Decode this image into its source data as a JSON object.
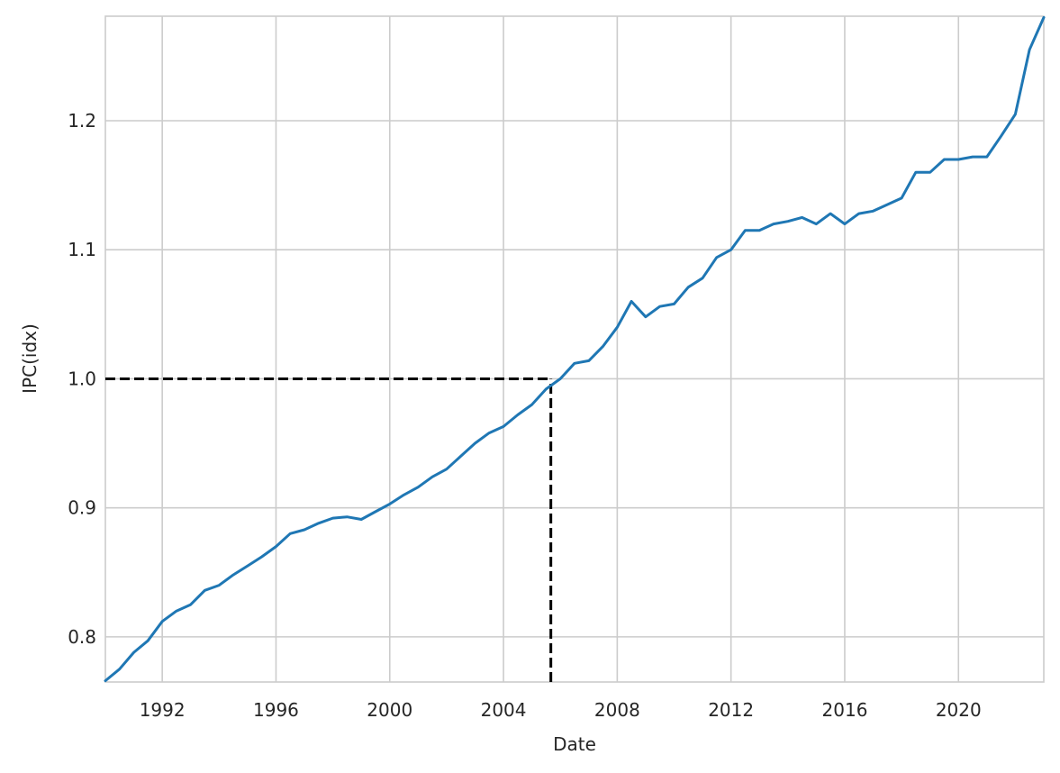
{
  "chart_data": {
    "type": "line",
    "title": "",
    "xlabel": "Date",
    "ylabel": "IPC(idx)",
    "x_axis_type": "date",
    "xlim": [
      "1990-01-01",
      "2023-01-01"
    ],
    "ylim": [
      0.765,
      1.281
    ],
    "x_ticks": [
      "1992",
      "1996",
      "2000",
      "2004",
      "2008",
      "2012",
      "2016",
      "2020"
    ],
    "y_ticks": [
      "0.8",
      "0.9",
      "1.0",
      "1.1",
      "1.2"
    ],
    "grid": true,
    "legend": "none",
    "colors": {
      "series": "#1f77b4",
      "reference": "#000000"
    },
    "series": [
      {
        "x": [
          "1990-01",
          "1990-07",
          "1991-01",
          "1991-07",
          "1992-01",
          "1992-07",
          "1993-01",
          "1993-07",
          "1994-01",
          "1994-07",
          "1995-01",
          "1995-07",
          "1996-01",
          "1996-07",
          "1997-01",
          "1997-07",
          "1998-01",
          "1998-07",
          "1999-01",
          "1999-07",
          "2000-01",
          "2000-07",
          "2001-01",
          "2001-07",
          "2002-01",
          "2002-07",
          "2003-01",
          "2003-07",
          "2004-01",
          "2004-07",
          "2005-01",
          "2005-07",
          "2006-01",
          "2006-07",
          "2007-01",
          "2007-07",
          "2008-01",
          "2008-07",
          "2009-01",
          "2009-07",
          "2010-01",
          "2010-07",
          "2011-01",
          "2011-07",
          "2012-01",
          "2012-07",
          "2013-01",
          "2013-07",
          "2014-01",
          "2014-07",
          "2015-01",
          "2015-07",
          "2016-01",
          "2016-07",
          "2017-01",
          "2017-07",
          "2018-01",
          "2018-07",
          "2019-01",
          "2019-07",
          "2020-01",
          "2020-07",
          "2021-01",
          "2021-07",
          "2022-01",
          "2022-07",
          "2023-01"
        ],
        "y": [
          0.766,
          0.775,
          0.788,
          0.797,
          0.812,
          0.82,
          0.825,
          0.836,
          0.84,
          0.848,
          0.855,
          0.862,
          0.87,
          0.88,
          0.883,
          0.888,
          0.892,
          0.893,
          0.891,
          0.897,
          0.903,
          0.91,
          0.916,
          0.924,
          0.93,
          0.94,
          0.95,
          0.958,
          0.963,
          0.972,
          0.98,
          0.992,
          1.0,
          1.012,
          1.014,
          1.025,
          1.04,
          1.06,
          1.048,
          1.056,
          1.058,
          1.071,
          1.078,
          1.094,
          1.1,
          1.115,
          1.115,
          1.12,
          1.122,
          1.125,
          1.12,
          1.128,
          1.12,
          1.128,
          1.13,
          1.135,
          1.14,
          1.16,
          1.16,
          1.17,
          1.17,
          1.172,
          1.172,
          1.188,
          1.205,
          1.255,
          1.28
        ]
      }
    ],
    "reference_lines": {
      "horizontal": {
        "y": 1.0,
        "from_x": "1990-01-01",
        "to_x": "2005-09-01"
      },
      "vertical": {
        "x": "2005-09-01",
        "from_y": 0.765,
        "to_y": 1.0
      }
    }
  }
}
